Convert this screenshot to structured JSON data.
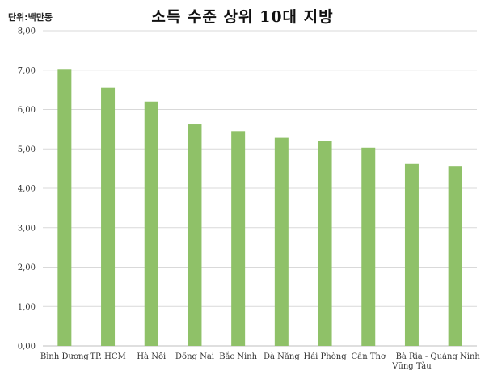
{
  "chart_data": {
    "type": "bar",
    "title": "소득 수준 상위 10대 지방",
    "unit_label": "단위:백만동",
    "categories": [
      "Bình Dương",
      "TP. HCM",
      "Hà Nội",
      "Đồng Nai",
      "Bắc Ninh",
      "Đà Nẵng",
      "Hải Phòng",
      "Cần Thơ",
      "Bà Rịa - Vũng Tàu",
      "Quảng Ninh"
    ],
    "values": [
      7.03,
      6.55,
      6.2,
      5.62,
      5.45,
      5.28,
      5.21,
      5.03,
      4.62,
      4.55
    ],
    "ylim": [
      0,
      8
    ],
    "yticks": [
      "0,00",
      "1,00",
      "2,00",
      "3,00",
      "4,00",
      "5,00",
      "6,00",
      "7,00",
      "8,00"
    ],
    "bar_color": "#8fc168",
    "grid": true,
    "legend": "none"
  }
}
